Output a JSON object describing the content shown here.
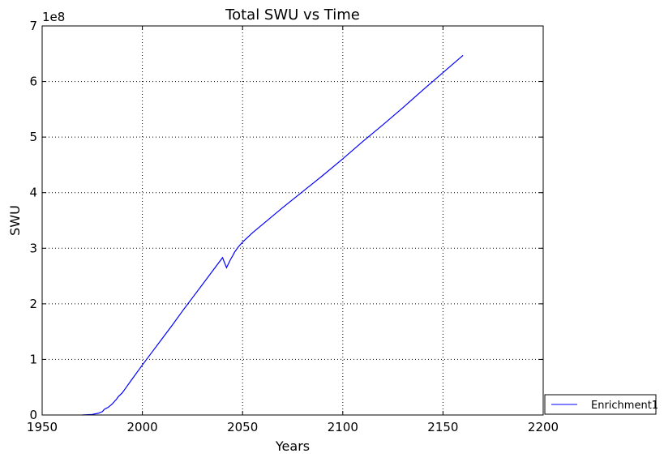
{
  "chart_data": {
    "type": "line",
    "title": "Total SWU vs Time",
    "xlabel": "Years",
    "ylabel": "SWU",
    "y_multiplier_label": "1e8",
    "xlim": [
      1950,
      2200
    ],
    "ylim": [
      0,
      7
    ],
    "x_ticks": [
      "1950",
      "2000",
      "2050",
      "2100",
      "2150",
      "2200"
    ],
    "y_ticks": [
      "0",
      "1",
      "2",
      "3",
      "4",
      "5",
      "6",
      "7"
    ],
    "grid": true,
    "legend_position": "outside-bottom-right",
    "series": [
      {
        "name": "Enrichment1",
        "color": "#0000ff",
        "x": [
          1970,
          1975,
          1978,
          1980,
          1981,
          1983,
          1985,
          1986,
          1987,
          1988,
          1990,
          1992,
          1995,
          2000,
          2005,
          2010,
          2015,
          2020,
          2025,
          2030,
          2035,
          2040,
          2042,
          2044,
          2045,
          2046,
          2048,
          2050,
          2055,
          2060,
          2070,
          2080,
          2090,
          2100,
          2110,
          2120,
          2130,
          2140,
          2150,
          2160
        ],
        "y": [
          0.0,
          0.01,
          0.03,
          0.06,
          0.1,
          0.14,
          0.2,
          0.24,
          0.28,
          0.33,
          0.4,
          0.5,
          0.65,
          0.9,
          1.14,
          1.38,
          1.62,
          1.87,
          2.11,
          2.35,
          2.59,
          2.83,
          2.65,
          2.8,
          2.86,
          2.93,
          3.03,
          3.11,
          3.28,
          3.43,
          3.73,
          4.02,
          4.31,
          4.61,
          4.92,
          5.22,
          5.53,
          5.85,
          6.16,
          6.47
        ]
      }
    ]
  }
}
